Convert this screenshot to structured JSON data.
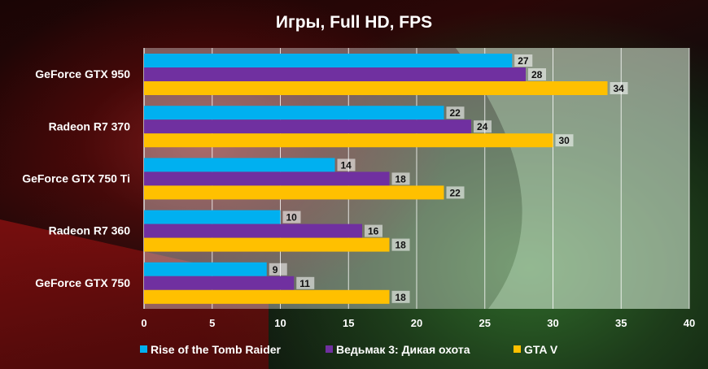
{
  "chart_data": {
    "type": "bar",
    "orientation": "horizontal",
    "title": "Игры, Full HD, FPS",
    "categories": [
      "GeForce GTX 950",
      "Radeon R7 370",
      "GeForce GTX 750 Ti",
      "Radeon R7 360",
      "GeForce GTX 750"
    ],
    "series": [
      {
        "name": "Rise of the Tomb Raider",
        "color": "#00B0F0",
        "values": [
          27,
          22,
          14,
          10,
          9
        ]
      },
      {
        "name": "Ведьмак 3: Дикая охота",
        "color": "#7030A0",
        "values": [
          28,
          24,
          18,
          16,
          11
        ]
      },
      {
        "name": "GTA V",
        "color": "#FFC000",
        "values": [
          34,
          30,
          22,
          18,
          18
        ]
      }
    ],
    "xlim": [
      0,
      40
    ],
    "xticks": [
      0,
      5,
      10,
      15,
      20,
      25,
      30,
      35,
      40
    ],
    "grid": true,
    "legend": "bottom"
  }
}
